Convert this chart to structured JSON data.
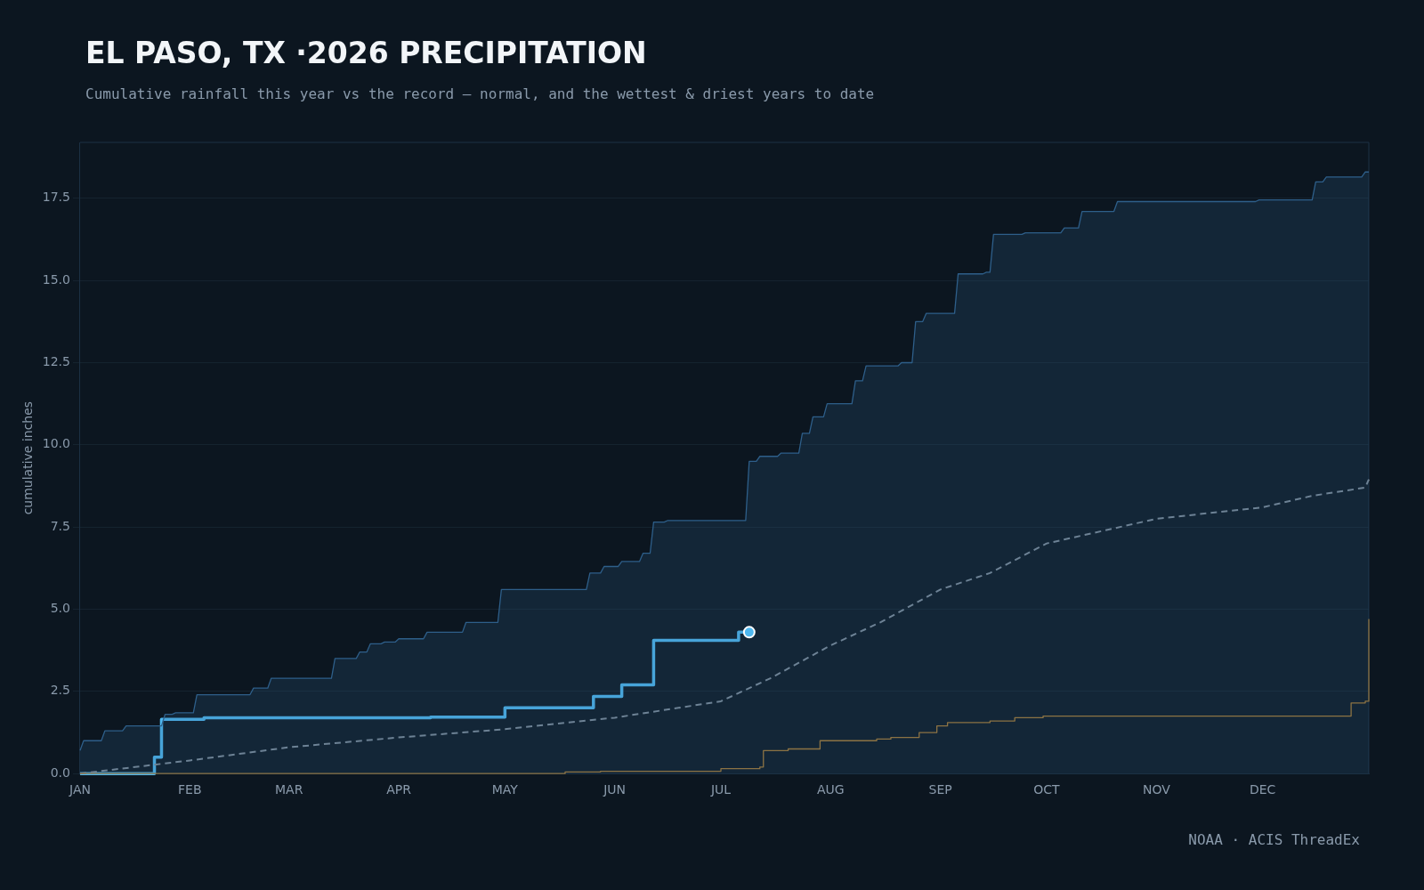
{
  "chart_data": {
    "type": "line",
    "title": "EL PASO, TX ·2026 PRECIPITATION",
    "subtitle": "Cumulative rainfall this year vs the record — normal, and the wettest & driest years to date",
    "ylabel": "cumulative inches",
    "annotations": [
      "NOAA · ACIS ThreadEx"
    ],
    "xlim": [
      "2026-01-01",
      "2026-12-31"
    ],
    "xticks": [
      {
        "value": "2026-01-01",
        "label": "JAN"
      },
      {
        "value": "2026-02-01",
        "label": "FEB"
      },
      {
        "value": "2026-03-01",
        "label": "MAR"
      },
      {
        "value": "2026-04-01",
        "label": "APR"
      },
      {
        "value": "2026-05-01",
        "label": "MAY"
      },
      {
        "value": "2026-06-01",
        "label": "JUN"
      },
      {
        "value": "2026-07-01",
        "label": "JUL"
      },
      {
        "value": "2026-08-01",
        "label": "AUG"
      },
      {
        "value": "2026-09-01",
        "label": "SEP"
      },
      {
        "value": "2026-10-01",
        "label": "OCT"
      },
      {
        "value": "2026-11-01",
        "label": "NOV"
      },
      {
        "value": "2026-12-01",
        "label": "DEC"
      }
    ],
    "ylim": [
      0,
      19.2
    ],
    "yticks": [
      {
        "value": 0,
        "label": "0.0"
      },
      {
        "value": 2.5,
        "label": "2.5"
      },
      {
        "value": 5,
        "label": "5.0"
      },
      {
        "value": 7.5,
        "label": "7.5"
      },
      {
        "value": 10,
        "label": "10.0"
      },
      {
        "value": 12.5,
        "label": "12.5"
      },
      {
        "value": 15,
        "label": "15.0"
      },
      {
        "value": 17.5,
        "label": "17.5"
      }
    ],
    "grid": "y",
    "legend": false,
    "series": [
      {
        "type": "area",
        "color": "#2e5f8a",
        "x": [
          "2026-01-01",
          "2026-01-02",
          "2026-01-07",
          "2026-01-08",
          "2026-01-13",
          "2026-01-14",
          "2026-01-24",
          "2026-01-25",
          "2026-01-27",
          "2026-01-28",
          "2026-02-02",
          "2026-02-03",
          "2026-02-18",
          "2026-02-19",
          "2026-02-23",
          "2026-02-24",
          "2026-03-13",
          "2026-03-14",
          "2026-03-20",
          "2026-03-21",
          "2026-03-23",
          "2026-03-24",
          "2026-03-27",
          "2026-03-28",
          "2026-03-31",
          "2026-04-01",
          "2026-04-08",
          "2026-04-09",
          "2026-04-19",
          "2026-04-20",
          "2026-04-29",
          "2026-04-30",
          "2026-05-24",
          "2026-05-25",
          "2026-05-28",
          "2026-05-29",
          "2026-06-02",
          "2026-06-03",
          "2026-06-08",
          "2026-06-09",
          "2026-06-11",
          "2026-06-12",
          "2026-06-15",
          "2026-06-16",
          "2026-07-08",
          "2026-07-09",
          "2026-07-11",
          "2026-07-12",
          "2026-07-17",
          "2026-07-18",
          "2026-07-23",
          "2026-07-24",
          "2026-07-26",
          "2026-07-27",
          "2026-07-30",
          "2026-07-31",
          "2026-08-07",
          "2026-08-08",
          "2026-08-10",
          "2026-08-11",
          "2026-08-20",
          "2026-08-21",
          "2026-08-24",
          "2026-08-25",
          "2026-08-27",
          "2026-08-28",
          "2026-09-05",
          "2026-09-06",
          "2026-09-13",
          "2026-09-14",
          "2026-09-15",
          "2026-09-16",
          "2026-09-24",
          "2026-09-25",
          "2026-10-05",
          "2026-10-06",
          "2026-10-10",
          "2026-10-11",
          "2026-10-20",
          "2026-10-21",
          "2026-11-29",
          "2026-11-30",
          "2026-12-15",
          "2026-12-16",
          "2026-12-18",
          "2026-12-19",
          "2026-12-29",
          "2026-12-30",
          "2026-12-31"
        ],
        "values": [
          0.7,
          1.0,
          1.0,
          1.3,
          1.3,
          1.45,
          1.45,
          1.8,
          1.8,
          1.85,
          1.85,
          2.4,
          2.4,
          2.6,
          2.6,
          2.9,
          2.9,
          3.5,
          3.5,
          3.7,
          3.7,
          3.95,
          3.95,
          4.0,
          4.0,
          4.1,
          4.1,
          4.3,
          4.3,
          4.6,
          4.6,
          5.6,
          5.6,
          6.1,
          6.1,
          6.3,
          6.3,
          6.45,
          6.45,
          6.7,
          6.7,
          7.65,
          7.65,
          7.7,
          7.7,
          9.5,
          9.5,
          9.65,
          9.65,
          9.75,
          9.75,
          10.35,
          10.35,
          10.85,
          10.85,
          11.25,
          11.25,
          11.95,
          11.95,
          12.4,
          12.4,
          12.5,
          12.5,
          13.75,
          13.75,
          14.0,
          14.0,
          15.2,
          15.2,
          15.25,
          15.25,
          16.4,
          16.4,
          16.45,
          16.45,
          16.6,
          16.6,
          17.1,
          17.1,
          17.4,
          17.4,
          17.45,
          17.45,
          18.0,
          18.0,
          18.15,
          18.15,
          18.3,
          18.3
        ]
      },
      {
        "type": "step",
        "color": "#8c7344",
        "x": [
          "2026-01-01",
          "2026-05-18",
          "2026-05-28",
          "2026-07-01",
          "2026-07-12",
          "2026-07-13",
          "2026-07-20",
          "2026-07-29",
          "2026-08-14",
          "2026-08-18",
          "2026-08-26",
          "2026-08-31",
          "2026-09-03",
          "2026-09-15",
          "2026-09-22",
          "2026-09-30",
          "2026-12-22",
          "2026-12-26",
          "2026-12-30",
          "2026-12-31"
        ],
        "values": [
          0,
          0.05,
          0.07,
          0.15,
          0.2,
          0.7,
          0.75,
          1.0,
          1.05,
          1.1,
          1.25,
          1.45,
          1.55,
          1.6,
          1.7,
          1.75,
          1.75,
          2.15,
          2.2,
          4.7
        ]
      },
      {
        "type": "line",
        "line_style": "dashed",
        "color": "#7f8c99",
        "x": [
          "2026-01-01",
          "2026-02-01",
          "2026-03-01",
          "2026-04-01",
          "2026-05-01",
          "2026-06-01",
          "2026-07-01",
          "2026-07-15",
          "2026-08-01",
          "2026-08-15",
          "2026-09-01",
          "2026-09-15",
          "2026-10-01",
          "2026-11-01",
          "2026-12-01",
          "2026-12-15",
          "2026-12-30",
          "2026-12-31"
        ],
        "values": [
          0,
          0.4,
          0.8,
          1.1,
          1.35,
          1.7,
          2.2,
          2.9,
          3.9,
          4.6,
          5.6,
          6.1,
          7.0,
          7.75,
          8.1,
          8.45,
          8.7,
          8.95
        ]
      },
      {
        "type": "step",
        "color": "#4fb8f0",
        "x": [
          "2026-01-01",
          "2026-01-21",
          "2026-01-22",
          "2026-01-24",
          "2026-02-05",
          "2026-04-07",
          "2026-04-10",
          "2026-05-01",
          "2026-05-26",
          "2026-06-03",
          "2026-06-12",
          "2026-07-05",
          "2026-07-06",
          "2026-07-09"
        ],
        "values": [
          0,
          0,
          0.5,
          1.65,
          1.7,
          1.7,
          1.72,
          2.0,
          2.35,
          2.7,
          4.05,
          4.05,
          4.3,
          4.3
        ]
      },
      {
        "type": "scatter",
        "marker": "circle",
        "color": "#4fb8f0",
        "x": [
          "2026-07-09"
        ],
        "values": [
          4.3
        ]
      }
    ]
  }
}
